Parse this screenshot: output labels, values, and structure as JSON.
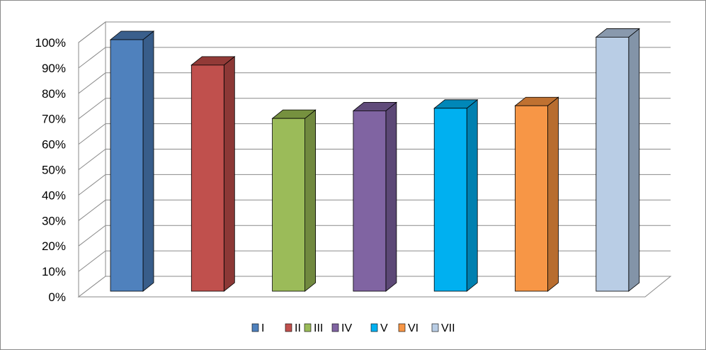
{
  "chart_data": {
    "type": "bar",
    "style": "3d-column",
    "categories": [
      ""
    ],
    "series": [
      {
        "name": "I",
        "value": 99,
        "color": "#4f81bd",
        "side": "#385d8a",
        "top": "#3a5f8c"
      },
      {
        "name": "II",
        "value": 89,
        "color": "#c0504d",
        "side": "#8c3836",
        "top": "#923a37"
      },
      {
        "name": "III",
        "value": 68,
        "color": "#9bbb59",
        "side": "#71893f",
        "top": "#76913f"
      },
      {
        "name": "IV",
        "value": 71,
        "color": "#8064a2",
        "side": "#5c4876",
        "top": "#604b7a"
      },
      {
        "name": "V",
        "value": 72,
        "color": "#00b0f0",
        "side": "#0080b0",
        "top": "#0087b8"
      },
      {
        "name": "VI",
        "value": 73,
        "color": "#f79646",
        "side": "#b86d2f",
        "top": "#bf7131"
      },
      {
        "name": "VII",
        "value": 100,
        "color": "#b9cde5",
        "side": "#8394a8",
        "top": "#8999ad"
      }
    ],
    "ylim": [
      0,
      100
    ],
    "yticks": [
      "0%",
      "10%",
      "20%",
      "30%",
      "40%",
      "50%",
      "60%",
      "70%",
      "80%",
      "90%",
      "100%"
    ],
    "title": "",
    "xlabel": "",
    "ylabel": "",
    "grid": true,
    "legend_position": "bottom"
  }
}
